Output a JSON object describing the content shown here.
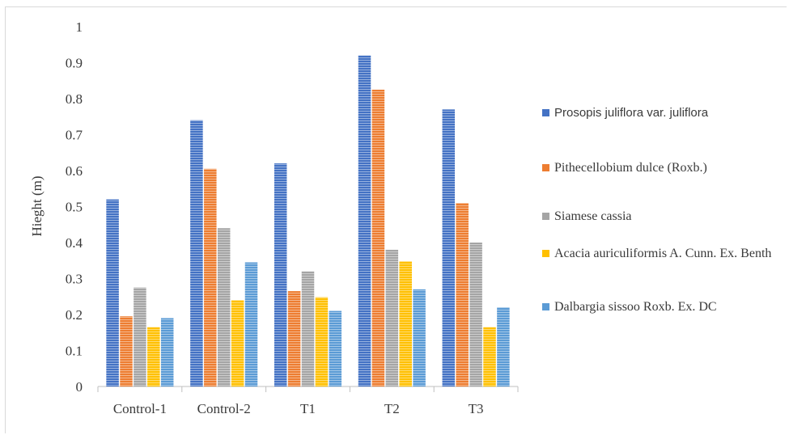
{
  "chart_data": {
    "type": "bar",
    "ylabel": "Hieght (m)",
    "xlabel": "",
    "title": "",
    "ylim": [
      0,
      1
    ],
    "yticks": [
      "0",
      "0.1",
      "0.2",
      "0.3",
      "0.4",
      "0.5",
      "0.6",
      "0.7",
      "0.8",
      "0.9",
      "1"
    ],
    "categories": [
      "Control-1",
      "Control-2",
      "T1",
      "T2",
      "T3"
    ],
    "legend_position": "right",
    "grid": false,
    "series": [
      {
        "name": "Prosopis juliflora var. juliflora",
        "color": "#4472c4",
        "values": [
          0.52,
          0.74,
          0.62,
          0.92,
          0.77
        ]
      },
      {
        "name": "Pithecellobium dulce (Roxb.)",
        "color": "#ed7d31",
        "values": [
          0.195,
          0.605,
          0.265,
          0.825,
          0.51
        ]
      },
      {
        "name": "Siamese cassia",
        "color": "#a5a5a5",
        "values": [
          0.275,
          0.44,
          0.32,
          0.38,
          0.4
        ]
      },
      {
        "name": "Acacia auriculiformis A. Cunn. Ex. Benth",
        "color": "#ffc000",
        "values": [
          0.165,
          0.24,
          0.248,
          0.348,
          0.165
        ]
      },
      {
        "name": "Dalbargia sissoo Roxb. Ex. DC",
        "color": "#5b9bd5",
        "values": [
          0.19,
          0.345,
          0.21,
          0.27,
          0.22
        ]
      }
    ]
  }
}
